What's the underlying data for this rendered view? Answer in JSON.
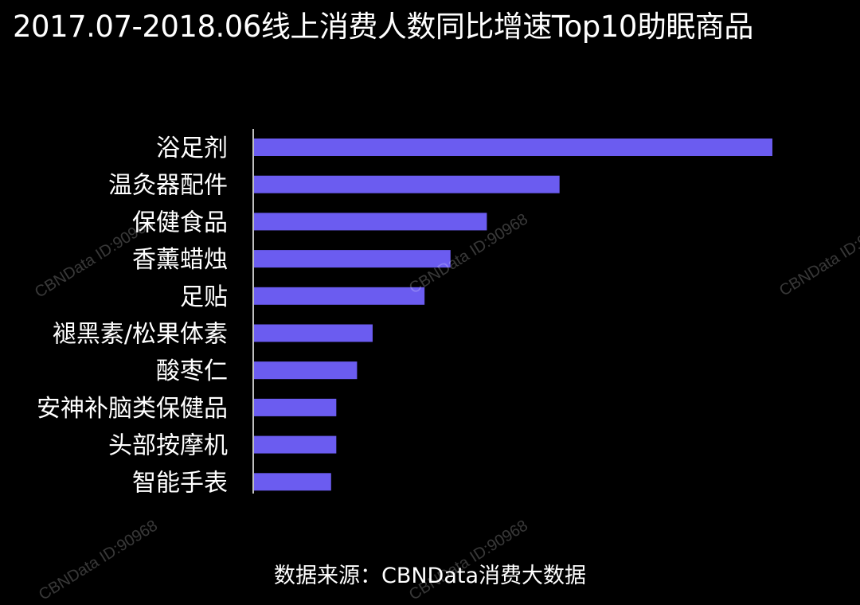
{
  "page": {
    "title": "2017.07-2018.06线上消费人数同比增速Top10助眠商品",
    "source": "数据来源：CBNData消费大数据",
    "watermark": "CBNData ID:90968",
    "colors": {
      "background": "#000000",
      "bar": "#6b5cf0",
      "text": "#ffffff",
      "axis": "#ffffff"
    }
  },
  "chart_data": {
    "type": "bar",
    "orientation": "horizontal",
    "title": "2017.07-2018.06线上消费人数同比增速Top10助眠商品",
    "xlabel": "",
    "ylabel": "",
    "categories": [
      "浴足剂",
      "温灸器配件",
      "保健食品",
      "香薰蜡烛",
      "足贴",
      "褪黑素/松果体素",
      "酸枣仁",
      "安神补脑类保健品",
      "头部按摩机",
      "智能手表"
    ],
    "values": [
      100,
      59,
      45,
      38,
      33,
      23,
      20,
      16,
      16,
      15
    ],
    "xlim": [
      0,
      100
    ],
    "grid": false,
    "legend": "none",
    "value_axis_visible": false
  }
}
